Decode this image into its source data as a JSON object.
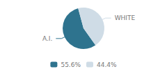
{
  "chart_data": {
    "type": "pie",
    "categories": [
      "A.I.",
      "WHITE"
    ],
    "values": [
      55.6,
      44.4
    ],
    "value_labels": [
      "55.6%",
      "44.4%"
    ],
    "colors": [
      "#2e738e",
      "#cfdce6"
    ],
    "legend": "bottom"
  }
}
